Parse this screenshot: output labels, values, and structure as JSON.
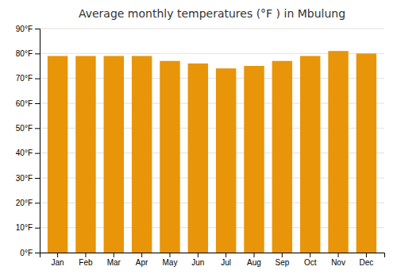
{
  "chart_data": {
    "type": "bar",
    "title": "Average monthly temperatures (°F ) in Mbulung",
    "categories": [
      "Jan",
      "Feb",
      "Mar",
      "Apr",
      "May",
      "Jun",
      "Jul",
      "Aug",
      "Sep",
      "Oct",
      "Nov",
      "Dec"
    ],
    "values": [
      79,
      79,
      79,
      79,
      77,
      76,
      74,
      75,
      77,
      79,
      81,
      80
    ],
    "color": "#E8950A",
    "ylim": [
      0,
      90
    ],
    "yticks": [
      {
        "value": 0,
        "label": "0°F"
      },
      {
        "value": 10,
        "label": "10°F"
      },
      {
        "value": 20,
        "label": "20°F"
      },
      {
        "value": 30,
        "label": "30°F"
      },
      {
        "value": 40,
        "label": "40°F"
      },
      {
        "value": 50,
        "label": "50°F"
      },
      {
        "value": 60,
        "label": "60°F"
      },
      {
        "value": 70,
        "label": "70°F"
      },
      {
        "value": 80,
        "label": "80°F"
      },
      {
        "value": 90,
        "label": "90°F"
      }
    ],
    "grid": true
  }
}
